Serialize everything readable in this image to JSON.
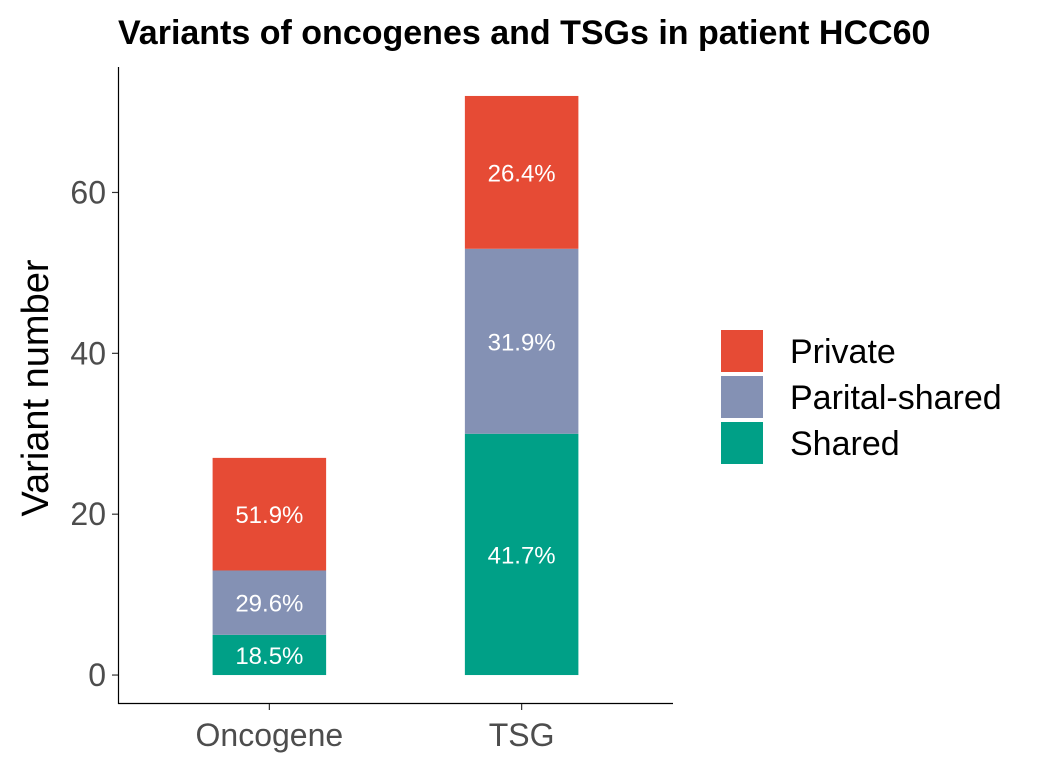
{
  "chart_data": {
    "type": "bar",
    "stacked": true,
    "title": "Variants of oncogenes and TSGs in patient HCC60",
    "xlabel": "",
    "ylabel": "Variant number",
    "categories": [
      "Oncogene",
      "TSG"
    ],
    "ylim": [
      -3.6,
      75.6
    ],
    "yticks": [
      0,
      20,
      40,
      60
    ],
    "grid": false,
    "legend_position": "right",
    "series": [
      {
        "name": "Shared",
        "color": "#00A087",
        "values": [
          5,
          30
        ],
        "labels": [
          "18.5%",
          "41.7%"
        ]
      },
      {
        "name": "Parital-shared",
        "color": "#8491B4",
        "values": [
          8,
          23
        ],
        "labels": [
          "29.6%",
          "31.9%"
        ]
      },
      {
        "name": "Private",
        "color": "#E64B35",
        "values": [
          14,
          19
        ],
        "labels": [
          "51.9%",
          "26.4%"
        ]
      }
    ],
    "legend_order": [
      "Private",
      "Parital-shared",
      "Shared"
    ]
  }
}
